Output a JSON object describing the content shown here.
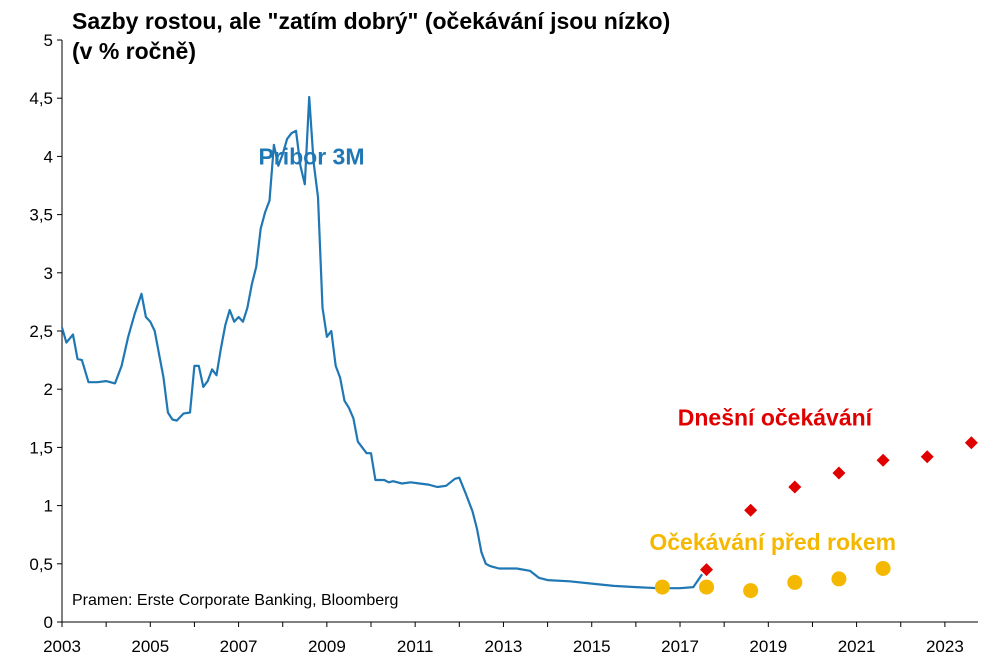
{
  "title": {
    "line1": "Sazby rostou, ale \"zatím dobrý\" (očekávání jsou nízko)",
    "line2": "(v % ročně)"
  },
  "source": "Pramen: Erste Corporate Banking, Bloomberg",
  "colors": {
    "pribor": "#1f77b4",
    "current_expectations": "#e00000",
    "previous_expectations": "#f5b800",
    "axis": "#000000"
  },
  "chart_data": {
    "type": "line",
    "xlim": [
      2003,
      2023.75
    ],
    "ylim": [
      0,
      5
    ],
    "y_ticks": [
      "0",
      "0,5",
      "1",
      "1,5",
      "2",
      "2,5",
      "3",
      "3,5",
      "4",
      "4,5",
      "5"
    ],
    "y_tick_values": [
      0,
      0.5,
      1,
      1.5,
      2,
      2.5,
      3,
      3.5,
      4,
      4.5,
      5
    ],
    "x_ticks": [
      "2003",
      "2005",
      "2007",
      "2009",
      "2011",
      "2013",
      "2015",
      "2017",
      "2019",
      "2021",
      "2023"
    ],
    "x_tick_values": [
      2003,
      2005,
      2007,
      2009,
      2011,
      2013,
      2015,
      2017,
      2019,
      2021,
      2023
    ],
    "grid": false,
    "series": [
      {
        "name": "Pribor 3M",
        "style": "line",
        "color": "#1f77b4",
        "x": [
          2003.0,
          2003.1,
          2003.25,
          2003.35,
          2003.45,
          2003.6,
          2003.8,
          2004.0,
          2004.2,
          2004.35,
          2004.5,
          2004.65,
          2004.8,
          2004.9,
          2005.0,
          2005.1,
          2005.2,
          2005.3,
          2005.4,
          2005.5,
          2005.6,
          2005.75,
          2005.9,
          2006.0,
          2006.1,
          2006.2,
          2006.3,
          2006.4,
          2006.5,
          2006.6,
          2006.7,
          2006.8,
          2006.9,
          2007.0,
          2007.1,
          2007.2,
          2007.3,
          2007.4,
          2007.5,
          2007.6,
          2007.7,
          2007.8,
          2007.9,
          2008.0,
          2008.1,
          2008.2,
          2008.3,
          2008.4,
          2008.5,
          2008.6,
          2008.7,
          2008.8,
          2008.9,
          2009.0,
          2009.1,
          2009.2,
          2009.3,
          2009.4,
          2009.5,
          2009.6,
          2009.7,
          2009.8,
          2009.9,
          2010.0,
          2010.1,
          2010.2,
          2010.3,
          2010.4,
          2010.5,
          2010.7,
          2010.9,
          2011.1,
          2011.3,
          2011.5,
          2011.7,
          2011.9,
          2012.0,
          2012.15,
          2012.3,
          2012.4,
          2012.5,
          2012.6,
          2012.7,
          2012.8,
          2012.9,
          2013.0,
          2013.3,
          2013.6,
          2013.8,
          2014.0,
          2014.5,
          2015.0,
          2015.5,
          2016.0,
          2016.5,
          2017.0,
          2017.3,
          2017.5
        ],
        "y": [
          2.53,
          2.4,
          2.47,
          2.26,
          2.25,
          2.06,
          2.06,
          2.07,
          2.05,
          2.2,
          2.45,
          2.65,
          2.82,
          2.62,
          2.58,
          2.5,
          2.3,
          2.1,
          1.8,
          1.74,
          1.73,
          1.79,
          1.8,
          2.2,
          2.2,
          2.02,
          2.07,
          2.17,
          2.12,
          2.35,
          2.55,
          2.68,
          2.58,
          2.62,
          2.58,
          2.7,
          2.9,
          3.05,
          3.38,
          3.52,
          3.62,
          4.1,
          3.92,
          4.02,
          4.15,
          4.2,
          4.22,
          3.92,
          3.76,
          4.51,
          3.95,
          3.65,
          2.7,
          2.45,
          2.5,
          2.2,
          2.1,
          1.9,
          1.84,
          1.75,
          1.55,
          1.5,
          1.45,
          1.45,
          1.22,
          1.22,
          1.22,
          1.2,
          1.21,
          1.19,
          1.2,
          1.19,
          1.18,
          1.16,
          1.17,
          1.23,
          1.24,
          1.1,
          0.95,
          0.8,
          0.6,
          0.5,
          0.48,
          0.47,
          0.46,
          0.46,
          0.46,
          0.44,
          0.38,
          0.36,
          0.35,
          0.33,
          0.31,
          0.3,
          0.29,
          0.29,
          0.3,
          0.41
        ]
      },
      {
        "name": "Dnešní očekávání",
        "style": "diamond",
        "color": "#e00000",
        "x": [
          2017.6,
          2018.6,
          2019.6,
          2020.6,
          2021.6,
          2022.6,
          2023.6
        ],
        "y": [
          0.45,
          0.96,
          1.16,
          1.28,
          1.39,
          1.42,
          1.54
        ]
      },
      {
        "name": "Očekávání před rokem",
        "style": "circle",
        "color": "#f5b800",
        "x": [
          2016.6,
          2017.6,
          2018.6,
          2019.6,
          2020.6,
          2021.6
        ],
        "y": [
          0.3,
          0.3,
          0.27,
          0.34,
          0.37,
          0.46
        ]
      }
    ]
  }
}
